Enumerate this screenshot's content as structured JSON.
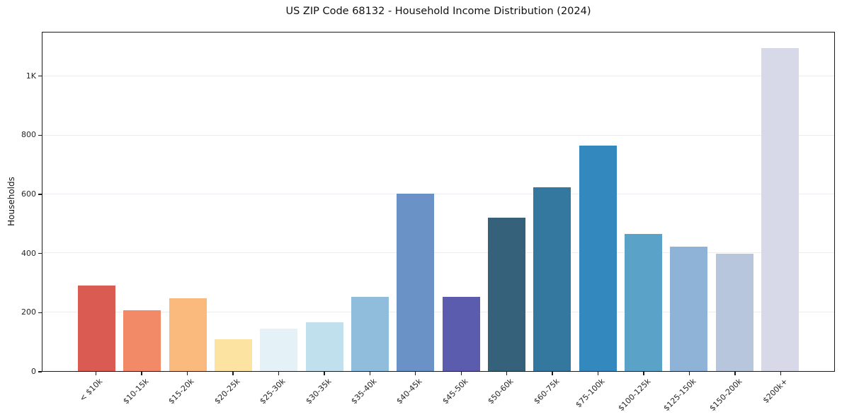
{
  "chart_data": {
    "type": "bar",
    "title": "US ZIP Code 68132 - Household Income Distribution (2024)",
    "xlabel": "",
    "ylabel": "Households",
    "ylim": [
      0,
      1150
    ],
    "grid": true,
    "legend": "none",
    "yticks": [
      {
        "value": 0,
        "label": "0"
      },
      {
        "value": 200,
        "label": "200"
      },
      {
        "value": 400,
        "label": "400"
      },
      {
        "value": 600,
        "label": "600"
      },
      {
        "value": 800,
        "label": "800"
      },
      {
        "value": 1000,
        "label": "1K"
      }
    ],
    "categories": [
      "< $10k",
      "$10-15k",
      "$15-20k",
      "$20-25k",
      "$25-30k",
      "$30-35k",
      "$35-40k",
      "$40-45k",
      "$45-50k",
      "$50-60k",
      "$60-75k",
      "$75-100k",
      "$100-125k",
      "$125-150k",
      "$150-200k",
      "$200k+"
    ],
    "values": [
      290,
      206,
      247,
      109,
      144,
      166,
      252,
      602,
      253,
      522,
      625,
      766,
      465,
      423,
      399,
      1097
    ],
    "bar_colors": [
      "#d95b52",
      "#f28a68",
      "#fab97d",
      "#fce3a2",
      "#e4f1f7",
      "#c1e0ed",
      "#90bddb",
      "#6a92c7",
      "#5c5cae",
      "#36617b",
      "#34789f",
      "#3389bd",
      "#5aa2c8",
      "#8eb3d6",
      "#b7c5dd",
      "#d8d9e8"
    ]
  },
  "colors": {
    "background": "#ffffff",
    "grid": "#ebecf2",
    "spine": "#1a1a1a",
    "tick_text": "#262626",
    "title_text": "#111111"
  }
}
